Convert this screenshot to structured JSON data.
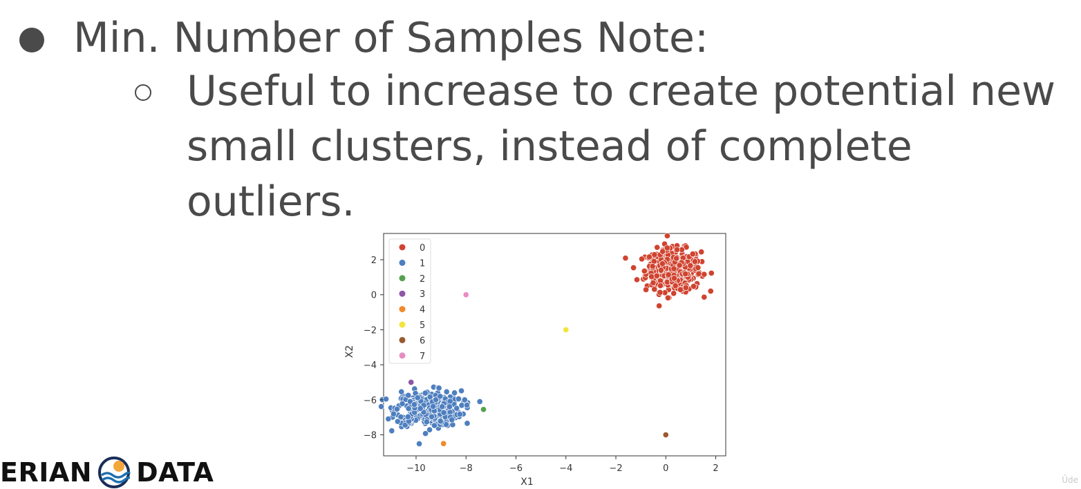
{
  "slide": {
    "bullet_main": "Min. Number of Samples Note:",
    "bullet_sub": "Useful to increase to create potential new small clusters, instead of complete outliers."
  },
  "logo": {
    "left_text": "ERIAN",
    "right_text": "DATA",
    "icon": "sun-over-waves-icon"
  },
  "watermark": "Ûde",
  "chart_data": {
    "type": "scatter",
    "xlabel": "X1",
    "ylabel": "X2",
    "xlim": [
      -11.3,
      2.4
    ],
    "ylim": [
      -9.2,
      3.5
    ],
    "xticks": [
      -10,
      -8,
      -6,
      -4,
      -2,
      0,
      2
    ],
    "yticks": [
      2,
      0,
      -2,
      -4,
      -6,
      -8
    ],
    "legend_position": "top-left",
    "series": [
      {
        "name": "0",
        "color": "#d0432f",
        "cluster": {
          "cx": 0.3,
          "cy": 1.4,
          "sx": 0.55,
          "sy": 0.6,
          "n": 420
        },
        "points": []
      },
      {
        "name": "1",
        "color": "#4e7fbf",
        "cluster": {
          "cx": -9.5,
          "cy": -6.5,
          "sx": 0.65,
          "sy": 0.5,
          "n": 400
        },
        "points": []
      },
      {
        "name": "2",
        "color": "#56a04e",
        "points": [
          [
            -7.3,
            -6.55
          ]
        ]
      },
      {
        "name": "3",
        "color": "#8e56a6",
        "points": [
          [
            -10.2,
            -5.0
          ]
        ]
      },
      {
        "name": "4",
        "color": "#f08a2c",
        "points": [
          [
            -8.9,
            -8.5
          ]
        ]
      },
      {
        "name": "5",
        "color": "#f3e53a",
        "points": [
          [
            -4.0,
            -2.0
          ]
        ]
      },
      {
        "name": "6",
        "color": "#9a5a30",
        "points": [
          [
            0.0,
            -8.0
          ]
        ]
      },
      {
        "name": "7",
        "color": "#e88dc4",
        "points": [
          [
            -8.0,
            0.0
          ]
        ]
      }
    ]
  }
}
